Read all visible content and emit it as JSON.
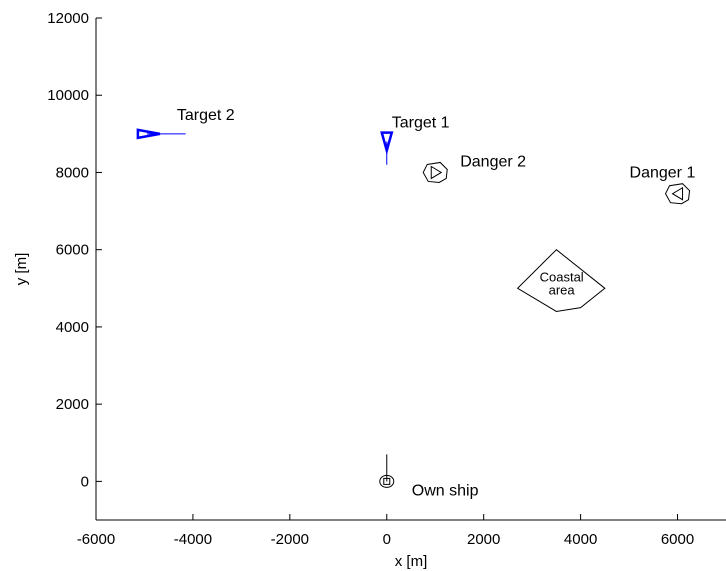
{
  "chart_data": {
    "type": "scatter",
    "title": "",
    "xlabel": "x [m]",
    "ylabel": "y [m]",
    "xlim": [
      -6000,
      7000
    ],
    "ylim": [
      -1000,
      12000
    ],
    "x_ticks": [
      -6000,
      -4000,
      -2000,
      0,
      2000,
      4000,
      6000
    ],
    "y_ticks": [
      0,
      2000,
      4000,
      6000,
      8000,
      10000,
      12000
    ],
    "grid": false,
    "colors": {
      "target": "#0000ff",
      "object": "#000000"
    },
    "objects": [
      {
        "id": "own",
        "label": "Own ship",
        "kind": "ship",
        "x": 0,
        "y": 0,
        "heading_deg": 0,
        "vector_length": 700
      },
      {
        "id": "t1",
        "label": "Target 1",
        "kind": "target",
        "x": 0,
        "y": 8800,
        "heading_deg": 180,
        "vector_length": 600
      },
      {
        "id": "t2",
        "label": "Target 2",
        "kind": "target",
        "x": -4950,
        "y": 9000,
        "heading_deg": 90,
        "vector_length": 800
      },
      {
        "id": "d1",
        "label": "Danger 1",
        "kind": "danger",
        "x": 6000,
        "y": 7450,
        "pointing": "left"
      },
      {
        "id": "d2",
        "label": "Danger 2",
        "kind": "danger",
        "x": 1000,
        "y": 8000,
        "pointing": "right"
      }
    ],
    "coastal_area": {
      "label_lines": [
        "Coastal",
        "area"
      ],
      "x": 3650,
      "y": 5100,
      "polygon": [
        [
          3500,
          6000
        ],
        [
          2700,
          5000
        ],
        [
          3500,
          4400
        ],
        [
          4000,
          4500
        ],
        [
          4500,
          5000
        ]
      ]
    }
  }
}
